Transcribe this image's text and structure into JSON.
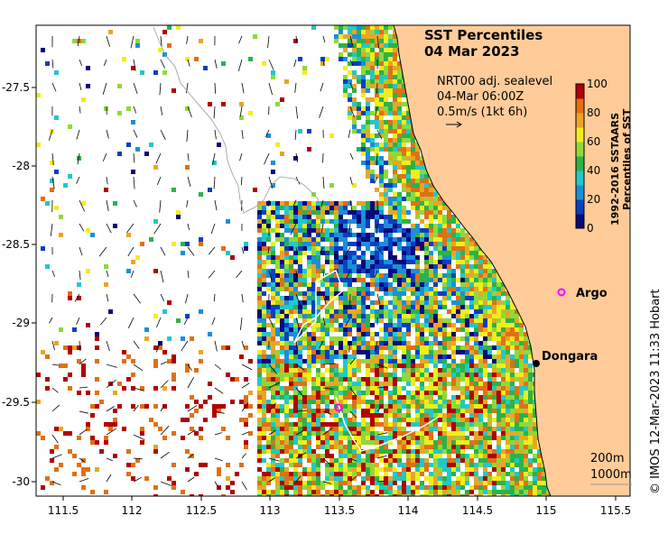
{
  "title": {
    "line1": "SST Percentiles",
    "line2": "04 Mar 2023"
  },
  "current_info": {
    "line1": "NRT00 adj. sealevel",
    "line2": "04-Mar 06:00Z",
    "line3": "0.5m/s (1kt 6h)"
  },
  "colorbar": {
    "label_line1": "1992-2016 SSTAARS",
    "label_line2": "Percentiles of SST",
    "ticks": [
      "0",
      "20",
      "40",
      "60",
      "80",
      "100"
    ],
    "colors": [
      "#08087a",
      "#0a3fc2",
      "#1a8fd8",
      "#22c8c8",
      "#2bb24a",
      "#8ed93a",
      "#f0ee1a",
      "#e8a626",
      "#e07015",
      "#b00000"
    ]
  },
  "axes": {
    "lon_ticks": [
      "111.5",
      "112",
      "112.5",
      "113",
      "113.5",
      "114",
      "114.5",
      "115",
      "115.5"
    ],
    "lat_ticks": [
      "-27.5",
      "-28",
      "-28.5",
      "-29",
      "-29.5",
      "-30"
    ]
  },
  "places": {
    "argo": "Argo",
    "dongara": "Dongara"
  },
  "bathymetry": {
    "contour1": "200m",
    "contour2": "1000m"
  },
  "credit": "© IMOS 12-Mar-2023 11:33 Hobart",
  "colors": {
    "land": "#ffcc99",
    "ocean_bg": "#ffffff",
    "argo_marker": "#ff00ff",
    "dongara_marker": "#000000"
  }
}
